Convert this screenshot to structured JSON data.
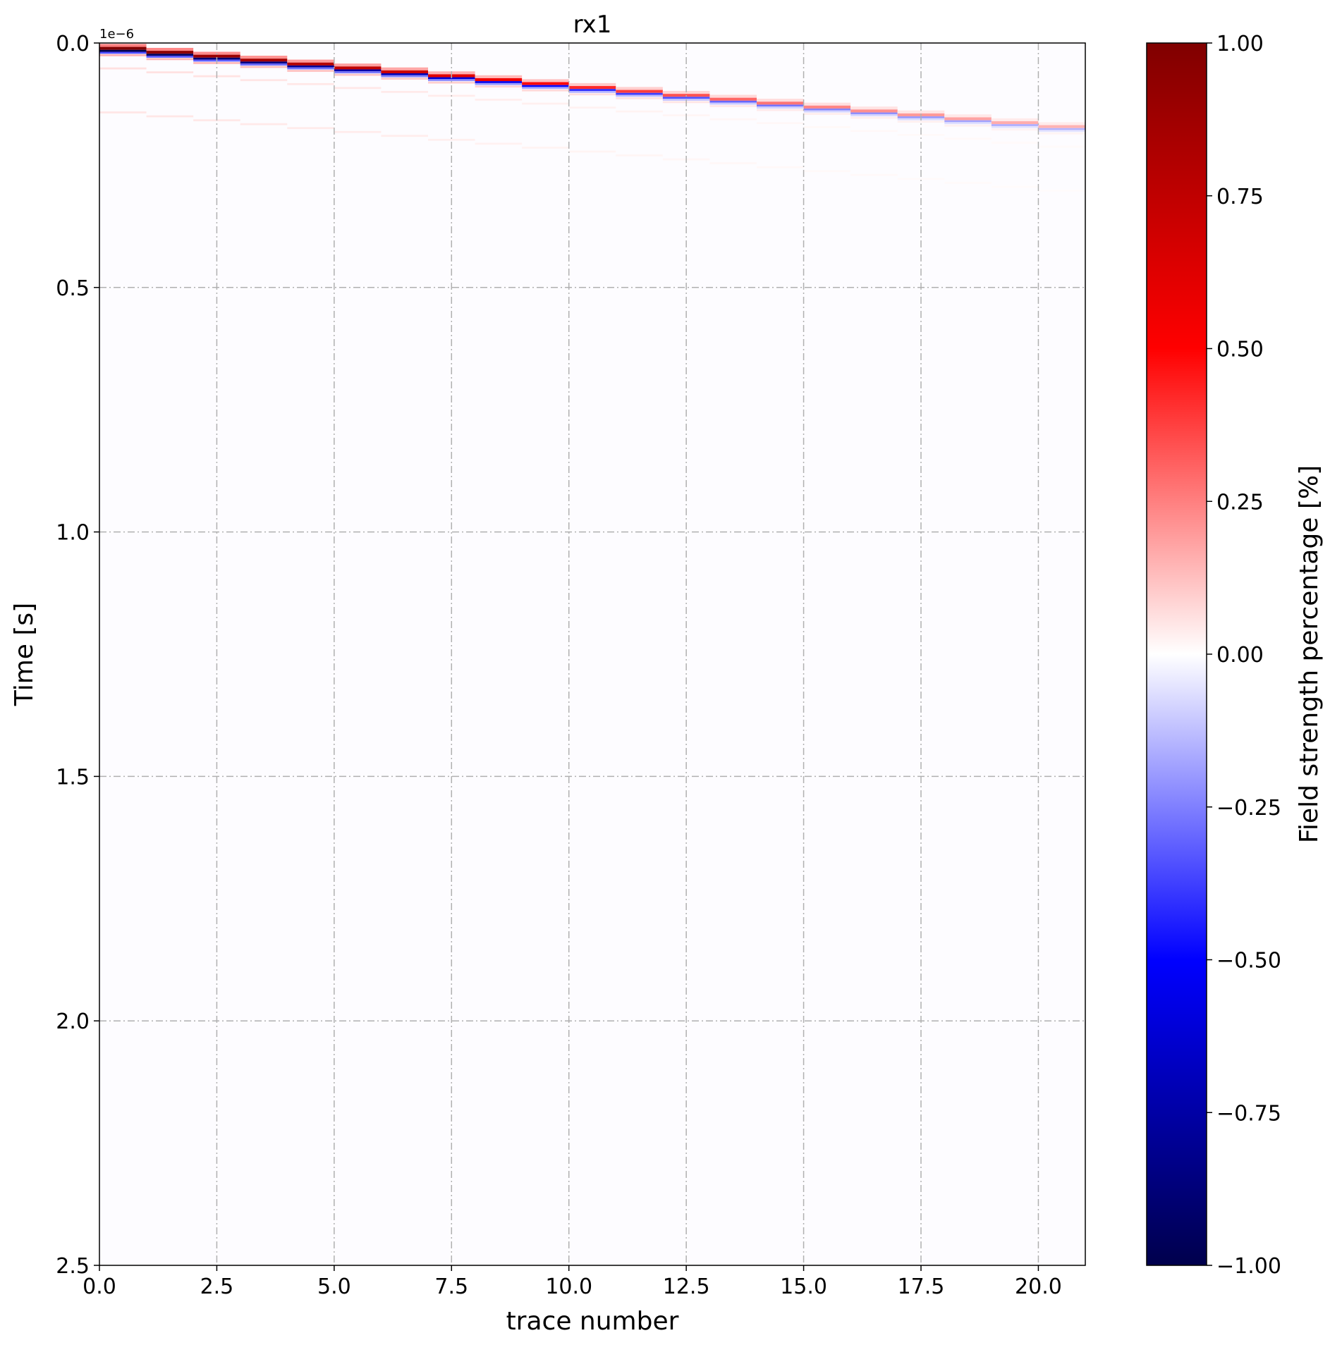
{
  "chart_data": {
    "type": "heatmap",
    "title": "rx1",
    "xlabel": "trace number",
    "ylabel": "Time [s]",
    "y_offset_label": "1e−6",
    "xlim": [
      0,
      21
    ],
    "ylim": [
      2.5,
      0
    ],
    "y_scale_factor": 1e-06,
    "x_ticks": [
      0.0,
      2.5,
      5.0,
      7.5,
      10.0,
      12.5,
      15.0,
      17.5,
      20.0
    ],
    "x_tick_labels": [
      "0.0",
      "2.5",
      "5.0",
      "7.5",
      "10.0",
      "12.5",
      "15.0",
      "17.5",
      "20.0"
    ],
    "y_ticks": [
      0.0,
      0.5,
      1.0,
      1.5,
      2.0,
      2.5
    ],
    "y_tick_labels": [
      "0.0",
      "0.5",
      "1.0",
      "1.5",
      "2.0",
      "2.5"
    ],
    "grid": true,
    "colorbar": {
      "label": "Field strength percentage [%]",
      "range": [
        -1.0,
        1.0
      ],
      "ticks": [
        1.0,
        0.75,
        0.5,
        0.25,
        0.0,
        -0.25,
        -0.5,
        -0.75,
        -1.0
      ],
      "tick_labels": [
        "1.00",
        "0.75",
        "0.50",
        "0.25",
        "0.00",
        "−0.25",
        "−0.50",
        "−0.75",
        "−1.00"
      ],
      "colormap": "seismic"
    },
    "traces": [
      0,
      1,
      2,
      3,
      4,
      5,
      6,
      7,
      8,
      9,
      10,
      11,
      12,
      13,
      14,
      15,
      16,
      17,
      18,
      19,
      20
    ],
    "first_arrival_time": [
      0.01,
      0.018,
      0.026,
      0.034,
      0.042,
      0.05,
      0.058,
      0.066,
      0.074,
      0.082,
      0.09,
      0.098,
      0.106,
      0.114,
      0.122,
      0.13,
      0.138,
      0.146,
      0.154,
      0.162,
      0.17
    ],
    "peak_amplitude": [
      1.0,
      0.95,
      0.9,
      0.85,
      0.8,
      0.75,
      0.7,
      0.62,
      0.55,
      0.48,
      0.42,
      0.38,
      0.34,
      0.3,
      0.27,
      0.24,
      0.22,
      0.2,
      0.18,
      0.16,
      0.15
    ]
  }
}
